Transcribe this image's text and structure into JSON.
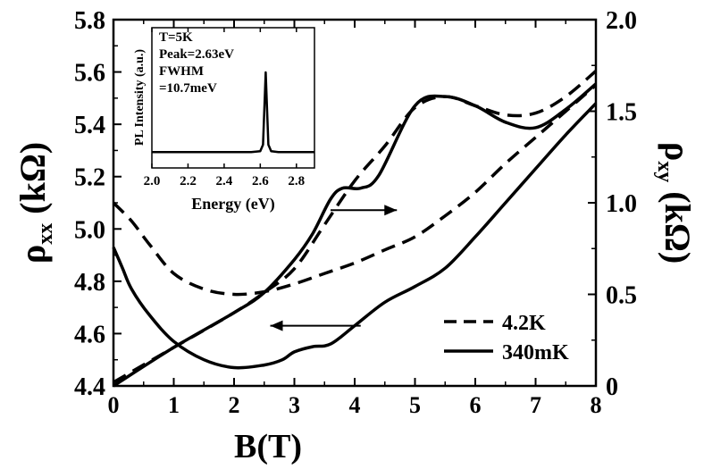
{
  "chart_data": [
    {
      "type": "line",
      "xlabel": "B(T)",
      "ylabel_left": "ρxx (kΩ)",
      "ylabel_right": "ρxy (kΩ)",
      "xlim": [
        0,
        8
      ],
      "ylim_left": [
        4.4,
        5.8
      ],
      "ylim_right": [
        0,
        2.0
      ],
      "x_ticks": [
        "0",
        "1",
        "2",
        "3",
        "4",
        "5",
        "6",
        "7",
        "8"
      ],
      "y_left_ticks": [
        "4.4",
        "4.6",
        "4.8",
        "5.0",
        "5.2",
        "5.4",
        "5.6",
        "5.8"
      ],
      "y_right_ticks": [
        "0",
        "0.5",
        "1.0",
        "1.5",
        "2.0"
      ],
      "grid": false,
      "legend": {
        "placement": "bottom-right",
        "entries": [
          {
            "label": "4.2K",
            "style": "dashed"
          },
          {
            "label": "340mK",
            "style": "solid"
          }
        ]
      },
      "series": [
        {
          "name": "4.2K",
          "quantity": "rho_xx",
          "axis": "left",
          "style": "dashed",
          "x": [
            0,
            0.3,
            0.6,
            1.0,
            1.5,
            2.0,
            2.5,
            3.0,
            3.5,
            4.0,
            4.5,
            5.0,
            5.5,
            6.0,
            6.5,
            7.0,
            7.5,
            8.0
          ],
          "y": [
            5.1,
            5.03,
            4.94,
            4.83,
            4.77,
            4.75,
            4.76,
            4.79,
            4.83,
            4.87,
            4.92,
            4.97,
            5.05,
            5.14,
            5.25,
            5.35,
            5.45,
            5.55
          ]
        },
        {
          "name": "340mK",
          "quantity": "rho_xx",
          "axis": "left",
          "style": "solid",
          "x": [
            0,
            0.15,
            0.3,
            0.6,
            1.0,
            1.5,
            2.0,
            2.5,
            2.8,
            3.0,
            3.3,
            3.6,
            4.0,
            4.5,
            5.0,
            5.5,
            6.0,
            6.5,
            7.0,
            7.5,
            8.0
          ],
          "y": [
            4.93,
            4.85,
            4.77,
            4.67,
            4.57,
            4.5,
            4.47,
            4.48,
            4.5,
            4.53,
            4.55,
            4.56,
            4.63,
            4.72,
            4.78,
            4.85,
            4.97,
            5.1,
            5.23,
            5.36,
            5.48
          ]
        },
        {
          "name": "4.2K",
          "quantity": "rho_xy",
          "axis": "right",
          "style": "dashed",
          "x": [
            0,
            1,
            2,
            2.5,
            3.0,
            3.5,
            4.0,
            4.5,
            5.0,
            5.5,
            6.0,
            6.5,
            7.0,
            7.5,
            8.0
          ],
          "y": [
            0.02,
            0.21,
            0.4,
            0.51,
            0.64,
            0.88,
            1.12,
            1.31,
            1.52,
            1.58,
            1.53,
            1.48,
            1.49,
            1.58,
            1.72
          ]
        },
        {
          "name": "340mK",
          "quantity": "rho_xy",
          "axis": "right",
          "style": "solid",
          "x": [
            0,
            1,
            2,
            2.5,
            3.0,
            3.3,
            3.6,
            3.8,
            4.1,
            4.4,
            5.0,
            5.5,
            6.0,
            6.5,
            7.0,
            7.5,
            8.0
          ],
          "y": [
            0.0,
            0.21,
            0.4,
            0.51,
            0.69,
            0.83,
            1.02,
            1.08,
            1.08,
            1.15,
            1.53,
            1.58,
            1.53,
            1.44,
            1.41,
            1.51,
            1.65
          ]
        }
      ],
      "annotations": [
        {
          "type": "arrow",
          "direction": "right",
          "x_start": 3.6,
          "x_end": 4.7,
          "y_right": 0.96
        },
        {
          "type": "arrow",
          "direction": "left",
          "x_start": 4.1,
          "x_end": 2.6,
          "y_left": 4.63
        }
      ]
    },
    {
      "type": "line",
      "role": "inset",
      "xlabel": "Energy (eV)",
      "ylabel": "PL Intensity (a.u.)",
      "xlim": [
        2.0,
        2.9
      ],
      "x_ticks": [
        "2.0",
        "2.2",
        "2.4",
        "2.6",
        "2.8"
      ],
      "y_ticks_shown": false,
      "text_lines": [
        "T=5K",
        "Peak=2.63eV",
        "FWHM",
        "=10.7meV"
      ],
      "series": [
        {
          "x": [
            2.0,
            2.55,
            2.6,
            2.615,
            2.625,
            2.63,
            2.635,
            2.645,
            2.66,
            2.7,
            2.9
          ],
          "y": [
            0.03,
            0.03,
            0.04,
            0.12,
            0.7,
            1.0,
            0.7,
            0.12,
            0.04,
            0.03,
            0.03
          ]
        }
      ]
    }
  ],
  "legend": {
    "label_4k": "4.2K",
    "label_340mk": "340mK"
  },
  "axes": {
    "x_title": "B(T)",
    "y_left_title_main": "ρ",
    "y_left_title_sub": "xx",
    "y_left_title_unit": " (kΩ)",
    "y_right_title_main": "ρ",
    "y_right_title_sub": "xy",
    "y_right_title_unit": " (kΩ)"
  },
  "inset": {
    "text_1": "T=5K",
    "text_2": "Peak=2.63eV",
    "text_3": "FWHM",
    "text_4": "=10.7meV",
    "x_title": "Energy (eV)",
    "y_title": "PL Intensity (a.u.)"
  }
}
